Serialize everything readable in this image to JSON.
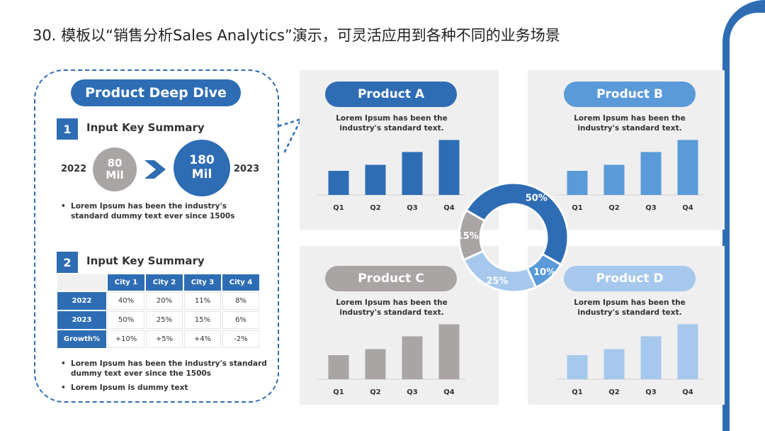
{
  "slide_title": "30. 模板以“销售分析Sales Analytics”演示，可灵活应用到各种不同的业务场景",
  "deep_dive": {
    "title": "Product Deep Dive",
    "section1": {
      "number": "1",
      "title": "Input Key Summary",
      "year_from": "2022",
      "year_to": "2023",
      "value_from": "80",
      "value_to": "180",
      "unit": "Mil",
      "bullet": "Lorem Ipsum has been the industry's standard dummy text ever since 1500s"
    },
    "section2": {
      "number": "2",
      "title": "Input Key Summary",
      "bullets": [
        "Lorem Ipsum has been the industry's standard dummy text ever since the 1500s",
        "Lorem Ipsum is dummy text"
      ]
    }
  },
  "colors": {
    "blue_dark": "#2e6db4",
    "blue_mid": "#5a9ad8",
    "blue_light": "#a6c8ec",
    "gray": "#a9a5a4"
  },
  "chart_data": [
    {
      "type": "table",
      "columns": [
        "City 1",
        "City 2",
        "City 3",
        "City 4"
      ],
      "rows": [
        {
          "label": "2022",
          "values": [
            "40%",
            "20%",
            "11%",
            "8%"
          ]
        },
        {
          "label": "2023",
          "values": [
            "50%",
            "25%",
            "15%",
            "6%"
          ]
        },
        {
          "label": "Growth%",
          "values": [
            "+10%",
            "+5%",
            "+4%",
            "-2%"
          ]
        }
      ]
    },
    {
      "type": "bar",
      "title": "Product A",
      "subtitle": "Lorem Ipsum has been the industry's standard text.",
      "categories": [
        "Q1",
        "Q2",
        "Q3",
        "Q4"
      ],
      "values": [
        32,
        40,
        57,
        73
      ],
      "ylim": [
        0,
        80
      ],
      "color": "#2e6db4"
    },
    {
      "type": "bar",
      "title": "Product B",
      "subtitle": "Lorem Ipsum has been the industry's standard text.",
      "categories": [
        "Q1",
        "Q2",
        "Q3",
        "Q4"
      ],
      "values": [
        32,
        40,
        57,
        73
      ],
      "ylim": [
        0,
        80
      ],
      "color": "#5a9ad8"
    },
    {
      "type": "bar",
      "title": "Product C",
      "subtitle": "Lorem Ipsum has been the industry's standard text.",
      "categories": [
        "Q1",
        "Q2",
        "Q3",
        "Q4"
      ],
      "values": [
        32,
        40,
        57,
        73
      ],
      "ylim": [
        0,
        80
      ],
      "color": "#a9a5a4"
    },
    {
      "type": "bar",
      "title": "Product D",
      "subtitle": "Lorem Ipsum has been the industry's standard text.",
      "categories": [
        "Q1",
        "Q2",
        "Q3",
        "Q4"
      ],
      "values": [
        32,
        40,
        57,
        73
      ],
      "ylim": [
        0,
        80
      ],
      "color": "#a6c8ec"
    },
    {
      "type": "pie",
      "donut": true,
      "labels": [
        "50%",
        "10%",
        "25%",
        "15%"
      ],
      "values": [
        50,
        10,
        25,
        15
      ],
      "colors": [
        "#2e6db4",
        "#5a9ad8",
        "#a6c8ec",
        "#a9a5a4"
      ]
    }
  ]
}
